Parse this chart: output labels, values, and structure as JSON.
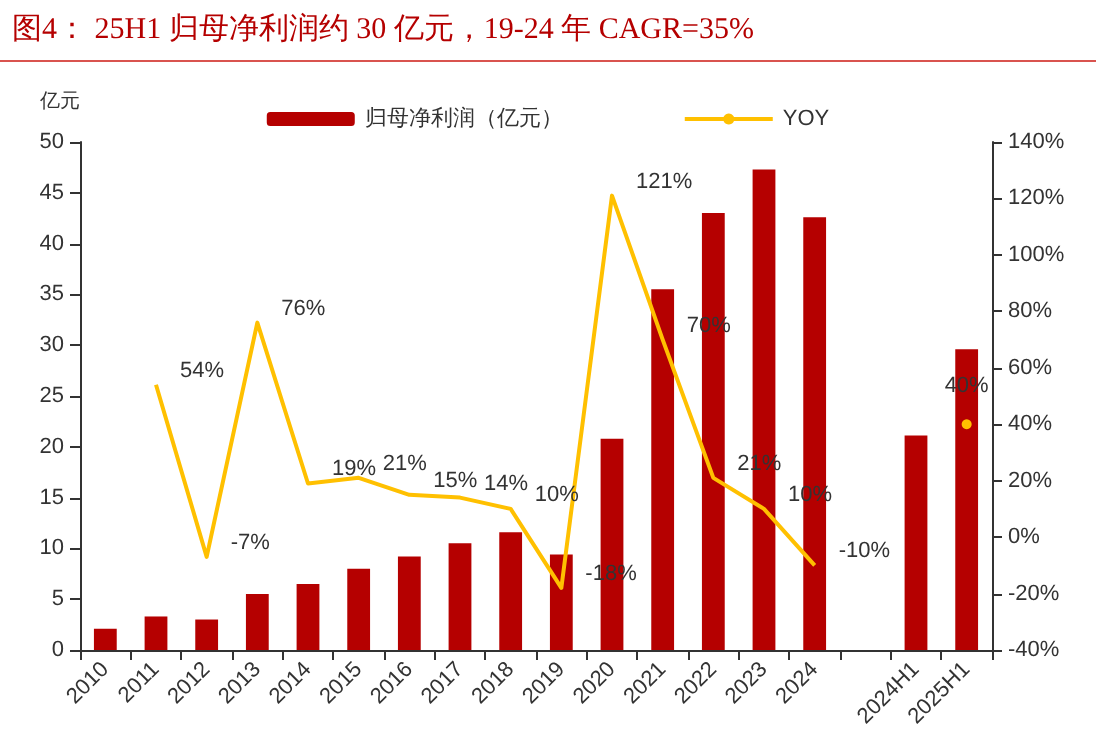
{
  "chart_data": {
    "type": "bar",
    "title": "图4：  25H1 归母净利润约 30 亿元，19-24 年 CAGR=35%",
    "ylabel": "亿元",
    "categories": [
      "2010",
      "2011",
      "2012",
      "2013",
      "2014",
      "2015",
      "2016",
      "2017",
      "2018",
      "2019",
      "2020",
      "2021",
      "2022",
      "2023",
      "2024",
      null,
      "2024H1",
      "2025H1"
    ],
    "series": [
      {
        "name": "归母净利润（亿元）",
        "color": "#b50000",
        "values": [
          2.1,
          3.3,
          3.0,
          5.5,
          6.5,
          8.0,
          9.2,
          10.5,
          11.6,
          9.4,
          20.8,
          35.5,
          43.0,
          47.3,
          42.6,
          null,
          21.1,
          29.6
        ]
      },
      {
        "name": "YOY",
        "type": "line",
        "axis": "y2",
        "color": "#ffc000",
        "values": [
          null,
          54,
          -7,
          76,
          19,
          21,
          15,
          14,
          10,
          -18,
          121,
          70,
          21,
          10,
          -10,
          null,
          null,
          40
        ],
        "value_labels": [
          null,
          "54%",
          "-7%",
          "76%",
          "19%",
          "21%",
          "15%",
          "14%",
          "10%",
          "-18%",
          "121%",
          "70%",
          "21%",
          "10%",
          "-10%",
          null,
          null,
          "40%"
        ]
      }
    ],
    "ylim": [
      0,
      50
    ],
    "yticks": [
      0,
      5,
      10,
      15,
      20,
      25,
      30,
      35,
      40,
      45,
      50
    ],
    "y2lim": [
      -40,
      140
    ],
    "y2ticks": [
      {
        "value": -40,
        "label": "-40%"
      },
      {
        "value": -20,
        "label": "-20%"
      },
      {
        "value": 0,
        "label": "0%"
      },
      {
        "value": 20,
        "label": "20%"
      },
      {
        "value": 40,
        "label": "40%"
      },
      {
        "value": 60,
        "label": "60%"
      },
      {
        "value": 80,
        "label": "80%"
      },
      {
        "value": 100,
        "label": "100%"
      },
      {
        "value": 120,
        "label": "120%"
      },
      {
        "value": 140,
        "label": "140%"
      }
    ],
    "grid": false,
    "legend": "top",
    "marker": "none"
  }
}
